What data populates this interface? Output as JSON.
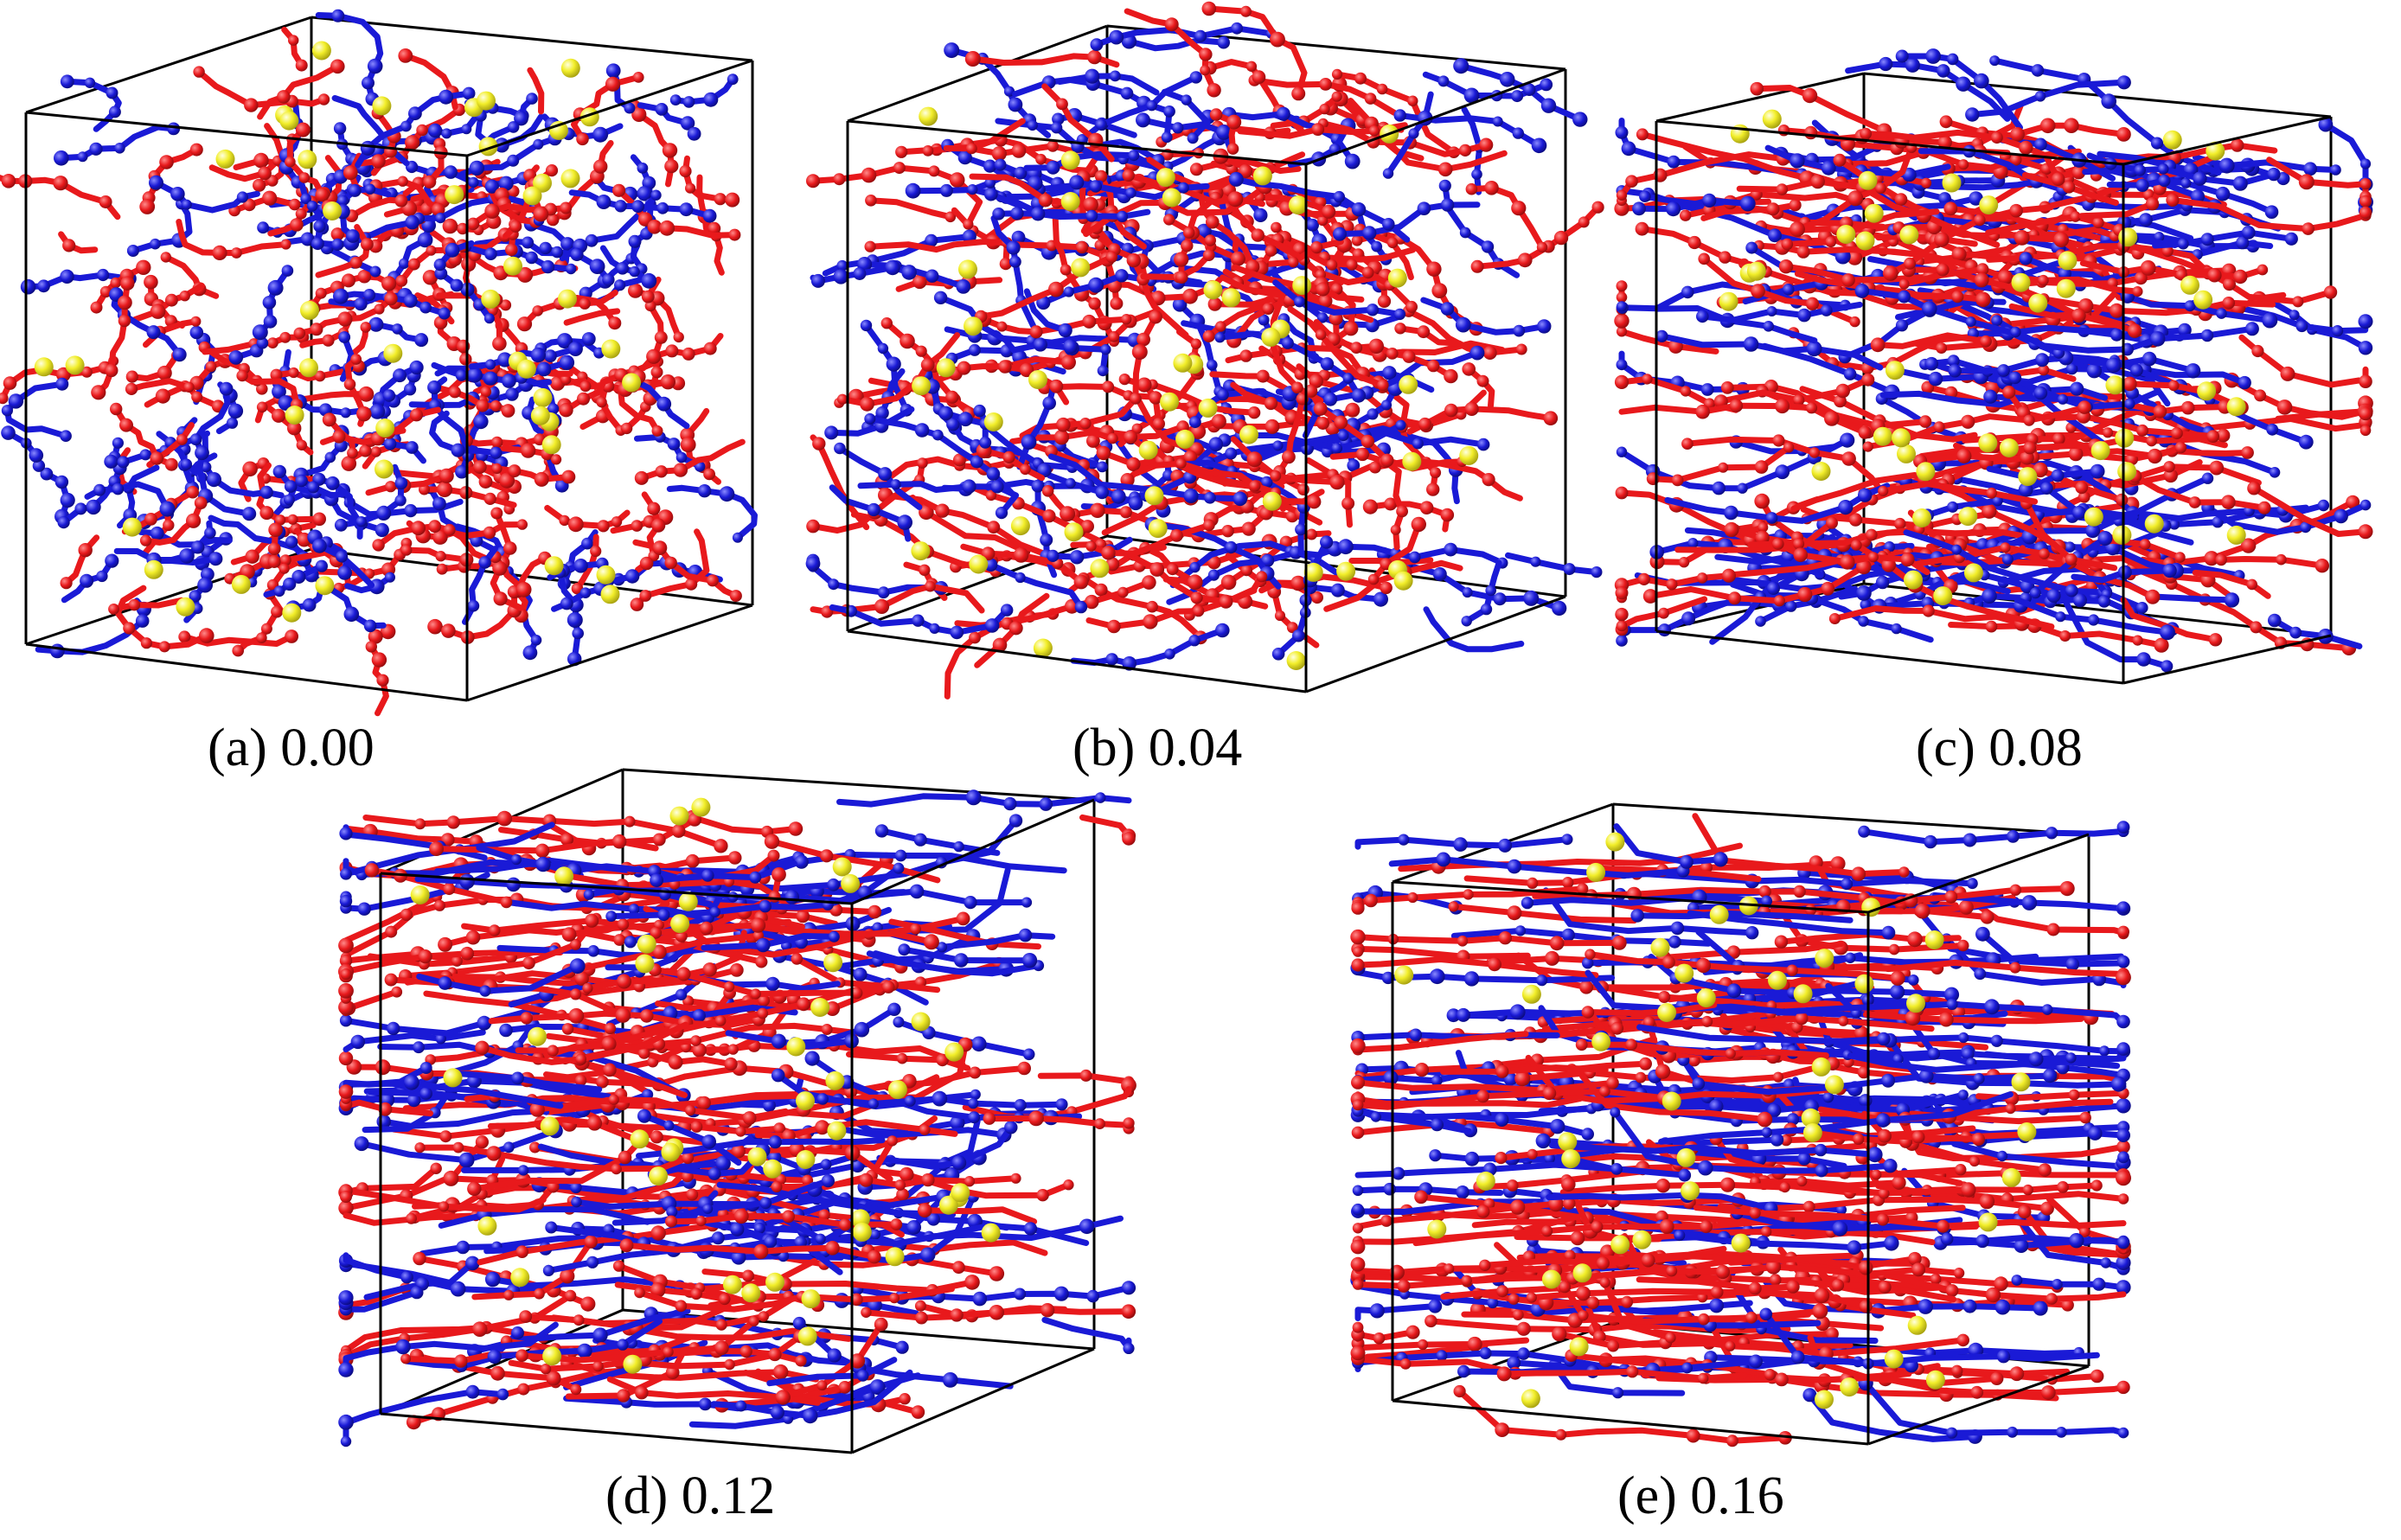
{
  "panels": [
    {
      "caption": "(a) 0.00",
      "strain": 0.0
    },
    {
      "caption": "(b) 0.04",
      "strain": 0.04
    },
    {
      "caption": "(c) 0.08",
      "strain": 0.08
    },
    {
      "caption": "(d) 0.12",
      "strain": 0.12
    },
    {
      "caption": "(e) 0.16",
      "strain": 0.16
    }
  ],
  "colors": {
    "chain_a": "#e8191c",
    "chain_b": "#1a1ad6",
    "particle": "#f2ee2a",
    "box_edge": "#000000",
    "background": "#ffffff"
  }
}
